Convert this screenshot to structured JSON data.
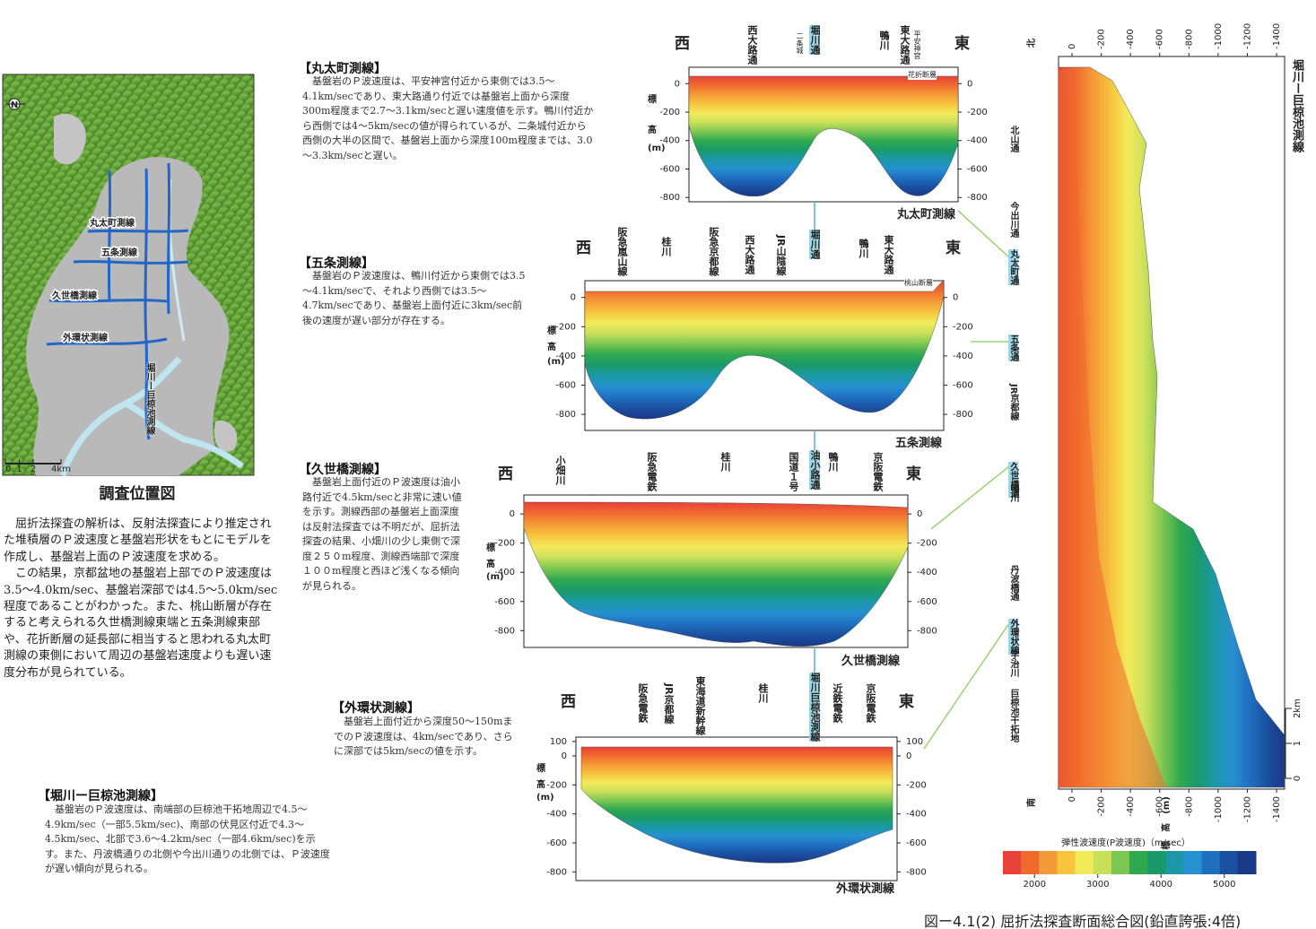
{
  "map": {
    "north": "N",
    "lines": [
      "丸太町測線",
      "五条測線",
      "久世橋測線",
      "外環状測線"
    ],
    "horikawa_line": "堀川ー巨椋池測線",
    "scale": [
      0,
      1,
      2,
      {
        "value": 4,
        "label": "4km"
      }
    ],
    "caption": "調査位置図"
  },
  "intro": [
    "屈折法探査の解析は、反射法探査により推定された堆積層のＰ波速度と基盤岩形状をもとにモデルを作成し、基盤岩上面のＰ波速度を求める。",
    "この結果，京都盆地の基盤岩上部でのＰ波速度は3.5～4.0km/sec、基盤岩深部では4.5～5.0km/sec程度であることがわかった。また、桃山断層が存在すると考えられる久世橋測線東端と五条測線東部や、花折断層の延長部に相当すると思われる丸太町測線の東側において周辺の基盤岩速度よりも遅い速度分布が見られている。"
  ],
  "sections": [
    {
      "title": "【丸太町測線】",
      "text": "基盤岩のＰ波速度は、平安神宮付近から東側では3.5～4.1km/secであり、東大路通り付近では基盤岩上面から深度300m程度まで2.7～3.1km/secと遅い速度値を示す。鴨川付近から西側では4～5km/secの値が得られているが、二条城付近から西側の大半の区間で、基盤岩上面から深度100m程度までは、3.0～3.3km/secと遅い。",
      "name": "丸太町測線",
      "west": "西",
      "east": "東",
      "elevation_label": [
        "標",
        "高",
        "(m)"
      ],
      "fault": "花折断層",
      "landmarks": [
        "西大路通",
        "二条城",
        "堀川通",
        "鴨川",
        "東大路通",
        "平安神宮"
      ],
      "ylim": [
        -830,
        115
      ],
      "yticks": [
        0,
        -200,
        -400,
        -600,
        -800
      ]
    },
    {
      "title": "【五条測線】",
      "text": "基盤岩のＰ波速度は、鴨川付近から東側では3.5～4.1km/secで、それより西側では3.5～4.7km/secであり、基盤岩上面付近に3km/sec前後の速度が遅い部分が存在する。",
      "name": "五条測線",
      "west": "西",
      "east": "東",
      "elevation_label": [
        "標",
        "高",
        "(m)"
      ],
      "fault": "桃山断層",
      "landmarks": [
        "阪急嵐山線",
        "桂川",
        "阪急京都線",
        "西大路通",
        "JR山陰線",
        "堀川通",
        "鴨川",
        "東大路通"
      ],
      "ylim": [
        -910,
        115
      ],
      "yticks": [
        0,
        -200,
        -400,
        -600,
        -800
      ]
    },
    {
      "title": "【久世橋測線】",
      "text": "基盤岩上面付近のＰ波速度は油小路付近で4.5km/secと非常に速い値を示す。測線西部の基盤岩上面深度は反射法探査では不明だが、屈折法探査の結果、小畑川の少し東側で深度２５０m程度、測線西端部で深度１００m程度と西ほど浅くなる傾向が見られる。",
      "name": "久世橋測線",
      "west": "西",
      "east": "東",
      "elevation_label": [
        "標",
        "高",
        "(m)"
      ],
      "landmarks": [
        "小畑川",
        "阪急電鉄",
        "桂川",
        "国道１号",
        "油小路通",
        "鴨川",
        "京阪電鉄"
      ],
      "ylim": [
        -915,
        130
      ],
      "yticks": [
        0,
        -200,
        -400,
        -600,
        -800
      ]
    },
    {
      "title": "【外環状測線】",
      "text": "基盤岩上面付近から深度50～150mまでのＰ波速度は、4km/secであり、さらに深部では5km/secの値を示す。",
      "name": "外環状測線",
      "west": "西",
      "east": "東",
      "elevation_label": [
        "標",
        "高",
        "(m)"
      ],
      "landmarks": [
        "阪急電鉄",
        "JR京都線",
        "東海道新幹線",
        "桂川",
        "堀川巨椋池測線",
        "近鉄電鉄",
        "京阪電鉄"
      ],
      "ylim": [
        -860,
        130
      ],
      "yticks": [
        100,
        0,
        -200,
        -400,
        -600,
        -800
      ]
    }
  ],
  "horikawa": {
    "title": "【堀川ー巨椋池測線】",
    "text": "基盤岩のＰ波速度は、南端部の巨椋池干拓地周辺で4.5～4.9km/sec（一部5.5km/sec)、南部の伏見区付近で4.3～4.5km/sec、北部で3.6～4.2km/sec（一部4.6km/sec)を示す。また、丹波橋通りの北側や今出川通りの北側では、Ｐ波速度が遅い傾向が見られる。"
  },
  "profile": {
    "title": "堀川ー巨椋池測線",
    "north": "北",
    "south": "南",
    "axis_label": "標　高　(m)",
    "landmarks": [
      "北山通",
      "今出川通",
      "丸太町通",
      "五条通",
      "JR京都線",
      "久世橋通",
      "鴨川",
      "丹波橋通",
      "外環状線",
      "宇治川",
      "巨椋池干拓地"
    ],
    "xlim": [
      92,
      -1455
    ],
    "xticks": [
      0,
      -200,
      -400,
      -600,
      -800,
      -1000,
      -1200,
      -1400
    ],
    "km_ticks": [
      0,
      1,
      {
        "value": 2,
        "label": "2km"
      }
    ]
  },
  "legend": {
    "title": "弾性波速度(P波速度)（m/sec）",
    "range": [
      1500,
      5500
    ],
    "ticks": [
      2000,
      3000,
      4000,
      5000
    ],
    "colors": [
      "#e8413a",
      "#f06a2e",
      "#f49a38",
      "#f7c43e",
      "#f3ea5a",
      "#c9e05a",
      "#7cc653",
      "#2fa84f",
      "#1a9a6a",
      "#1b98a8",
      "#2690d0",
      "#1f6fc0",
      "#1b4fa0",
      "#1a3888"
    ]
  },
  "caption": "図ー4.1(2)  屈折法探査断面総合図(鉛直誇張:4倍)"
}
